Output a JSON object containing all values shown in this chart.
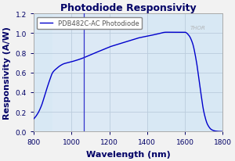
{
  "title": "Photodiode Responsivity",
  "xlabel": "Wavelength (nm)",
  "ylabel": "Responsivity (A/W)",
  "legend_label": "PDB482C-AC Photodiode",
  "xlim": [
    800,
    1800
  ],
  "ylim": [
    0.0,
    1.2
  ],
  "xticks": [
    800,
    1000,
    1200,
    1400,
    1600,
    1800
  ],
  "yticks": [
    0.0,
    0.2,
    0.4,
    0.6,
    0.8,
    1.0,
    1.2
  ],
  "line_color": "#0000cc",
  "vline_x": 1064,
  "vline_color": "#3333cc",
  "shaded_region": [
    900,
    1400
  ],
  "shaded_color": "#dce9f5",
  "grid_color": "#bbccdd",
  "bg_color": "#d8e8f4",
  "fig_bg_color": "#f2f2f2",
  "thorlabs_text": "THOR",
  "title_color": "#000066",
  "axis_color": "#000066",
  "title_fontsize": 9,
  "label_fontsize": 8,
  "tick_fontsize": 6.5,
  "legend_fontsize": 6,
  "curve_points_wl": [
    800,
    820,
    840,
    860,
    880,
    900,
    920,
    940,
    960,
    980,
    1000,
    1050,
    1100,
    1150,
    1200,
    1250,
    1300,
    1350,
    1400,
    1450,
    1500,
    1520,
    1550,
    1580,
    1600,
    1620,
    1640,
    1660,
    1680,
    1700,
    1720,
    1740,
    1760,
    1780,
    1800
  ],
  "curve_points_resp": [
    0.13,
    0.18,
    0.26,
    0.38,
    0.5,
    0.6,
    0.64,
    0.67,
    0.69,
    0.7,
    0.71,
    0.74,
    0.78,
    0.82,
    0.86,
    0.89,
    0.92,
    0.95,
    0.97,
    0.99,
    1.01,
    1.01,
    1.01,
    1.01,
    1.01,
    0.98,
    0.9,
    0.72,
    0.45,
    0.2,
    0.07,
    0.02,
    0.005,
    0.001,
    0.0
  ]
}
